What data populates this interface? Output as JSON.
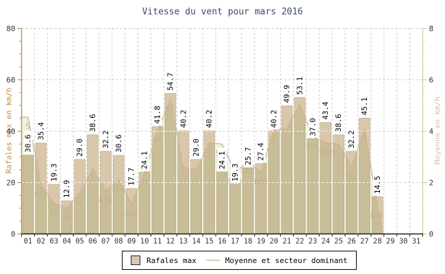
{
  "title": "Vitesse du vent pour mars 2016",
  "legend": {
    "bar_label": "Rafales max",
    "line_label": "Moyenne et secteur dominant"
  },
  "colors": {
    "title": "#3d4968",
    "bar_fill": "#d9c7ac",
    "bar_edge": "#bfac89",
    "area_fill": "#ecf2e2",
    "line": "#d2b189",
    "direction_label": "#c7b28f",
    "left_axis": "#c58a4a",
    "right_axis": "#d8cfa8",
    "x_axis": "#1a1a1a",
    "grid": "#c9c9c9",
    "grid_on_bars": "#ffffff",
    "tick_label": "#333333",
    "value_label": "#000000",
    "value_label_bg": "#ffffff"
  },
  "chart_data": {
    "type": "bar",
    "title": "Vitesse du vent pour mars 2016",
    "x_tick_labels": [
      "01",
      "02",
      "03",
      "04",
      "05",
      "06",
      "07",
      "08",
      "09",
      "10",
      "11",
      "12",
      "13",
      "14",
      "15",
      "16",
      "17",
      "18",
      "19",
      "20",
      "21",
      "22",
      "23",
      "24",
      "25",
      "26",
      "27",
      "28",
      "29",
      "30",
      "31"
    ],
    "left_axis": {
      "label": "Rafales max en km/h",
      "min": 0,
      "max": 80,
      "major_ticks": [
        0,
        20,
        40,
        60,
        80
      ],
      "minor_step": 5
    },
    "right_axis": {
      "label": "Moyenne en km/h",
      "min": 0,
      "max": 8,
      "major_ticks": [
        0,
        2,
        4,
        6,
        8
      ],
      "minor_step": 0.5
    },
    "grid": true,
    "legend_position": "bottom",
    "series": [
      {
        "name": "Rafales max",
        "type": "bar",
        "axis": "left",
        "values": [
          30.6,
          35.4,
          19.3,
          12.9,
          29.0,
          38.6,
          32.2,
          30.6,
          17.7,
          24.1,
          41.8,
          54.7,
          40.2,
          29.0,
          40.2,
          24.1,
          19.3,
          25.7,
          27.4,
          40.2,
          49.9,
          53.1,
          37.0,
          43.4,
          38.6,
          32.2,
          45.1,
          14.5,
          null,
          null,
          null
        ]
      },
      {
        "name": "Moyenne et secteur dominant",
        "type": "area-line",
        "axis": "right",
        "values": [
          4.55,
          1.9,
          1.2,
          1.0,
          1.6,
          2.55,
          1.65,
          2.1,
          1.15,
          2.35,
          4.0,
          5.25,
          2.6,
          2.5,
          3.55,
          3.5,
          2.4,
          2.8,
          2.4,
          4.05,
          4.1,
          5.05,
          3.8,
          3.55,
          3.5,
          2.6,
          4.1,
          1.1,
          null,
          null,
          null
        ],
        "directions": [
          "S",
          "ESE",
          "SE",
          "N",
          "SE",
          "S",
          "OSO",
          "SSE",
          "ENE",
          "NE",
          "NE",
          "SE",
          "",
          "E",
          "E",
          "SSE",
          "NNO",
          "ENE",
          "NNE",
          "E",
          "E",
          "",
          "SSE",
          "SSO",
          "S",
          "NE",
          "E",
          "NNE",
          "",
          "",
          ""
        ]
      }
    ]
  }
}
